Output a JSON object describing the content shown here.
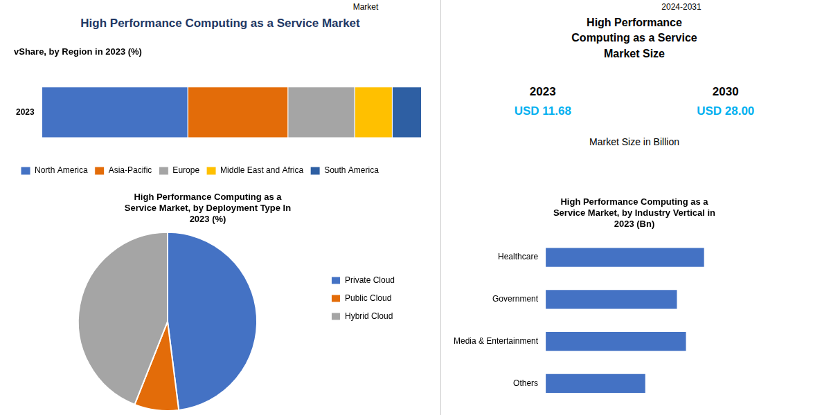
{
  "title": "High Performance Computing as a Service Market",
  "color": "#1F3864",
  "annotations": [
    "Market",
    "2024-2031"
  ],
  "chart_data": [
    {
      "type": "bar",
      "orientation": "horizontal",
      "stacked": true,
      "subtitle": "vShare, by Region in 2023 (%)",
      "categories": [
        "2023"
      ],
      "series": [
        {
          "name": "North America",
          "color": "#4472C4",
          "values": [
            0.35
          ]
        },
        {
          "name": "Asia-Pacific",
          "color": "#E36C09",
          "values": [
            0.24
          ]
        },
        {
          "name": "Europe",
          "color": "#A5A5A5",
          "values": [
            0.16
          ]
        },
        {
          "name": "Middle East and Africa",
          "color": "#FFC000",
          "values": [
            0.09
          ]
        },
        {
          "name": "South America",
          "color": "#2E5FA3",
          "values": [
            0.07
          ]
        }
      ],
      "xlim": [
        0,
        0.9282
      ],
      "grid": false,
      "legend": "bottom",
      "tick_labels": "y"
    },
    {
      "type": "pie",
      "title": "High Performance Computing as a\nService Market, by Deployment Type In\n2023 (%)",
      "categories": [
        "Private Cloud",
        "Public Cloud",
        "Hybrid Cloud"
      ],
      "values": [
        48,
        8,
        44
      ],
      "colors": [
        "#4472C4",
        "#E36C09",
        "#A5A5A5"
      ],
      "legend": "right"
    },
    {
      "type": "table",
      "title": "High Performance\nComputing as a Service\nMarket Size",
      "categories": [
        "2023",
        "2030"
      ],
      "values": [
        11.68,
        28.0
      ],
      "value_labels": [
        "USD 11.68",
        "USD 28.00"
      ],
      "color": "#00B0F0",
      "subtitle": "Market Size in Billion"
    },
    {
      "type": "bar",
      "orientation": "horizontal",
      "title": "High Performance Computing as a\nService Market, by Industry Vertical in\n2023 (Bn)",
      "categories": [
        "Others",
        "Media & Entertainment",
        "Government",
        "Healthcare"
      ],
      "values": [
        1.1,
        1.55,
        1.45,
        1.75
      ],
      "color": "#4472C4",
      "xlim": [
        0,
        3.0
      ],
      "grid": false,
      "tick_labels": "y"
    }
  ]
}
